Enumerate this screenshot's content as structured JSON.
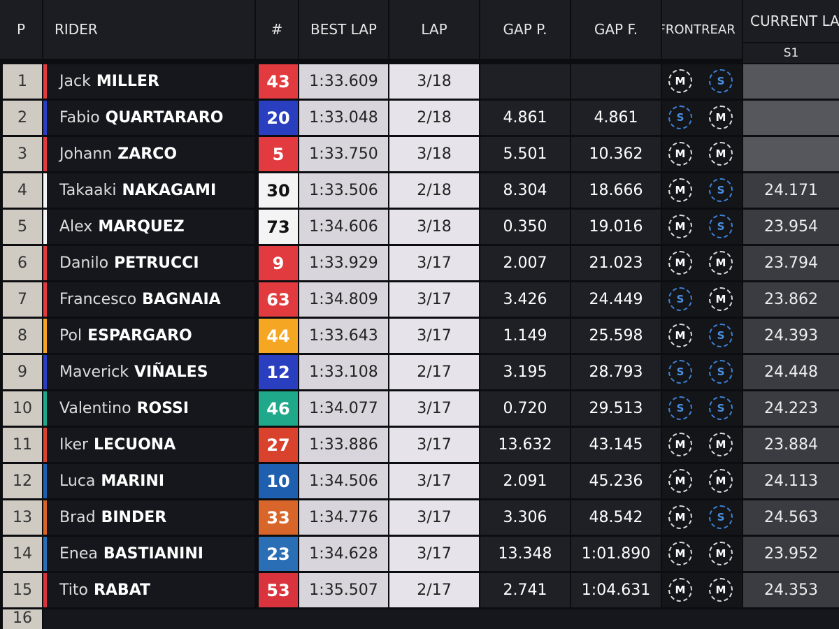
{
  "header": {
    "position": "P",
    "rider": "RIDER",
    "number": "#",
    "best_lap": "BEST LAP",
    "lap": "LAP",
    "gap_p": "GAP P.",
    "gap_f": "GAP F.",
    "front": "FRONT",
    "rear": "REAR",
    "current_lap": "CURRENT LA",
    "sector": "S1"
  },
  "rows": [
    {
      "position": "1",
      "first": "Jack",
      "last": "MILLER",
      "number": "43",
      "color": "#e23b3f",
      "best_lap": "1:33.609",
      "lap": "3/18",
      "front": "M",
      "rear": "S"
    },
    {
      "position": "2",
      "first": "Fabio",
      "last": "QUARTARARO",
      "number": "20",
      "color": "#2a3fc0",
      "best_lap": "1:33.048",
      "lap": "2/18",
      "gap_p": "4.861",
      "gap_f": "4.861",
      "front": "S",
      "rear": "M"
    },
    {
      "position": "3",
      "first": "Johann",
      "last": "ZARCO",
      "number": "5",
      "color": "#e23b3f",
      "best_lap": "1:33.750",
      "lap": "3/18",
      "gap_p": "5.501",
      "gap_f": "10.362",
      "front": "M",
      "rear": "M"
    },
    {
      "position": "4",
      "first": "Takaaki",
      "last": "NAKAGAMI",
      "number": "30",
      "color": "#f4f4f4",
      "best_lap": "1:33.506",
      "lap": "2/18",
      "gap_p": "8.304",
      "gap_f": "18.666",
      "front": "M",
      "rear": "S",
      "s1": "24.171"
    },
    {
      "position": "5",
      "first": "Alex",
      "last": "MARQUEZ",
      "number": "73",
      "color": "#f4f4f4",
      "best_lap": "1:34.606",
      "lap": "3/18",
      "gap_p": "0.350",
      "gap_f": "19.016",
      "front": "M",
      "rear": "S",
      "s1": "23.954"
    },
    {
      "position": "6",
      "first": "Danilo",
      "last": "PETRUCCI",
      "number": "9",
      "color": "#e23b3f",
      "best_lap": "1:33.929",
      "lap": "3/17",
      "gap_p": "2.007",
      "gap_f": "21.023",
      "front": "M",
      "rear": "M",
      "s1": "23.794"
    },
    {
      "position": "7",
      "first": "Francesco",
      "last": "BAGNAIA",
      "number": "63",
      "color": "#e23b3f",
      "best_lap": "1:34.809",
      "lap": "3/17",
      "gap_p": "3.426",
      "gap_f": "24.449",
      "front": "S",
      "rear": "M",
      "s1": "23.862"
    },
    {
      "position": "8",
      "first": "Pol",
      "last": "ESPARGARO",
      "number": "44",
      "color": "#f5a623",
      "best_lap": "1:33.643",
      "lap": "3/17",
      "gap_p": "1.149",
      "gap_f": "25.598",
      "front": "M",
      "rear": "S",
      "s1": "24.393"
    },
    {
      "position": "9",
      "first": "Maverick",
      "last": "VIÑALES",
      "number": "12",
      "color": "#2a3fc0",
      "best_lap": "1:33.108",
      "lap": "2/17",
      "gap_p": "3.195",
      "gap_f": "28.793",
      "front": "S",
      "rear": "S",
      "s1": "24.448"
    },
    {
      "position": "10",
      "first": "Valentino",
      "last": "ROSSI",
      "number": "46",
      "color": "#1fa88a",
      "best_lap": "1:34.077",
      "lap": "3/17",
      "gap_p": "0.720",
      "gap_f": "29.513",
      "front": "S",
      "rear": "S",
      "s1": "24.223"
    },
    {
      "position": "11",
      "first": "Iker",
      "last": "LECUONA",
      "number": "27",
      "color": "#d9432e",
      "best_lap": "1:33.886",
      "lap": "3/17",
      "gap_p": "13.632",
      "gap_f": "43.145",
      "front": "M",
      "rear": "M",
      "s1": "23.884"
    },
    {
      "position": "12",
      "first": "Luca",
      "last": "MARINI",
      "number": "10",
      "color": "#1f5fb0",
      "best_lap": "1:34.506",
      "lap": "3/17",
      "gap_p": "2.091",
      "gap_f": "45.236",
      "front": "M",
      "rear": "M",
      "s1": "24.113"
    },
    {
      "position": "13",
      "first": "Brad",
      "last": "BINDER",
      "number": "33",
      "color": "#d8662a",
      "best_lap": "1:34.776",
      "lap": "3/17",
      "gap_p": "3.306",
      "gap_f": "48.542",
      "front": "M",
      "rear": "S",
      "s1": "24.563"
    },
    {
      "position": "14",
      "first": "Enea",
      "last": "BASTIANINI",
      "number": "23",
      "color": "#2a6fb5",
      "best_lap": "1:34.628",
      "lap": "3/17",
      "gap_p": "13.348",
      "gap_f": "1:01.890",
      "front": "M",
      "rear": "M",
      "s1": "23.952"
    },
    {
      "position": "15",
      "first": "Tito",
      "last": "RABAT",
      "number": "53",
      "color": "#d9343e",
      "best_lap": "1:35.507",
      "lap": "2/17",
      "gap_p": "2.741",
      "gap_f": "1:04.631",
      "front": "M",
      "rear": "M",
      "s1": "24.353"
    }
  ],
  "partial_row": {
    "position": "16"
  }
}
